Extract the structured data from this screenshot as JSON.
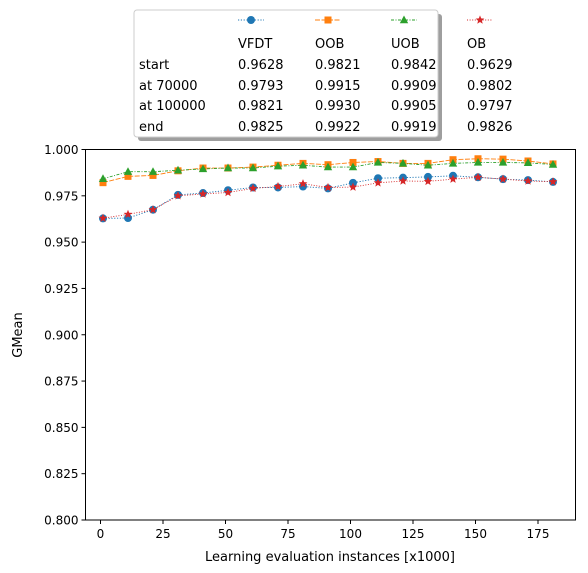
{
  "chart_data": {
    "type": "line",
    "xlabel": "Learning evaluation instances [x1000]",
    "ylabel": "GMean",
    "xlim": [
      -6,
      190
    ],
    "ylim": [
      0.8,
      1.0
    ],
    "xticks": [
      0,
      25,
      50,
      75,
      100,
      125,
      150,
      175
    ],
    "yticks": [
      0.8,
      0.825,
      0.85,
      0.875,
      0.9,
      0.925,
      0.95,
      0.975,
      1.0
    ],
    "xtick_labels": [
      "0",
      "25",
      "50",
      "75",
      "100",
      "125",
      "150",
      "175"
    ],
    "ytick_labels": [
      "0.800",
      "0.825",
      "0.850",
      "0.875",
      "0.900",
      "0.925",
      "0.950",
      "0.975",
      "1.000"
    ],
    "grid": false,
    "legend_placement": "top-center",
    "x": [
      1,
      11,
      21,
      31,
      41,
      51,
      61,
      71,
      81,
      91,
      101,
      111,
      121,
      131,
      141,
      151,
      161,
      171,
      181
    ],
    "series": [
      {
        "name": "VFDT",
        "color": "#1f77b4",
        "marker": "circle",
        "values": [
          0.9628,
          0.963,
          0.9675,
          0.9755,
          0.9765,
          0.978,
          0.9795,
          0.9795,
          0.98,
          0.979,
          0.982,
          0.9845,
          0.9848,
          0.9852,
          0.9858,
          0.985,
          0.984,
          0.9835,
          0.9825
        ]
      },
      {
        "name": "OOB",
        "color": "#ff7f0e",
        "marker": "square",
        "values": [
          0.9821,
          0.9855,
          0.986,
          0.9885,
          0.99,
          0.99,
          0.9905,
          0.9915,
          0.9925,
          0.9918,
          0.993,
          0.9935,
          0.9925,
          0.9925,
          0.9945,
          0.995,
          0.9948,
          0.9938,
          0.9922
        ]
      },
      {
        "name": "UOB",
        "color": "#2ca02c",
        "marker": "triangle",
        "values": [
          0.9842,
          0.988,
          0.988,
          0.9888,
          0.9895,
          0.99,
          0.99,
          0.991,
          0.9915,
          0.9905,
          0.9905,
          0.993,
          0.9925,
          0.9915,
          0.9925,
          0.993,
          0.993,
          0.9928,
          0.9919
        ]
      },
      {
        "name": "OB",
        "color": "#d62728",
        "marker": "star",
        "values": [
          0.9629,
          0.965,
          0.9675,
          0.975,
          0.976,
          0.9768,
          0.979,
          0.98,
          0.9815,
          0.9795,
          0.9797,
          0.982,
          0.983,
          0.9828,
          0.984,
          0.985,
          0.984,
          0.983,
          0.9826
        ]
      }
    ],
    "table": {
      "row_labels": [
        "start",
        "at 70000",
        "at 100000",
        "end"
      ],
      "columns": [
        "VFDT",
        "OOB",
        "UOB",
        "OB"
      ],
      "cells": [
        [
          "0.9628",
          "0.9821",
          "0.9842",
          "0.9629"
        ],
        [
          "0.9793",
          "0.9915",
          "0.9909",
          "0.9802"
        ],
        [
          "0.9821",
          "0.9930",
          "0.9905",
          "0.9797"
        ],
        [
          "0.9825",
          "0.9922",
          "0.9919",
          "0.9826"
        ]
      ]
    }
  }
}
